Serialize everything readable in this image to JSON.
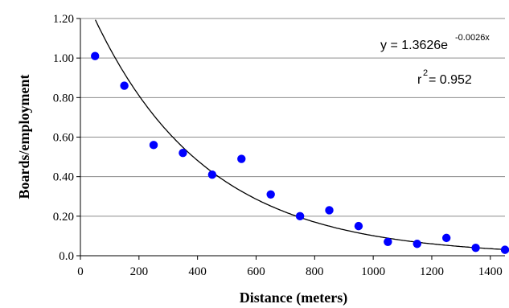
{
  "chart_data": {
    "type": "scatter",
    "xlabel": "Distance (meters)",
    "ylabel": "Boards/employment",
    "xlim": [
      0,
      1450
    ],
    "ylim": [
      0,
      1.2
    ],
    "x_ticks": [
      0,
      200,
      400,
      600,
      800,
      1000,
      1200,
      1400
    ],
    "x_tick_labels": [
      "0",
      "200",
      "400",
      "600",
      "800",
      "1000",
      "1200",
      "1400"
    ],
    "y_ticks": [
      0,
      0.2,
      0.4,
      0.6,
      0.8,
      1.0,
      1.2
    ],
    "y_tick_labels": [
      "0.0",
      "0.20",
      "0.40",
      "0.60",
      "0.80",
      "1.00",
      "1.20"
    ],
    "grid": "horizontal",
    "marker_color": "#0000ff",
    "points": [
      {
        "x": 50,
        "y": 1.01
      },
      {
        "x": 150,
        "y": 0.86
      },
      {
        "x": 250,
        "y": 0.56
      },
      {
        "x": 350,
        "y": 0.52
      },
      {
        "x": 450,
        "y": 0.41
      },
      {
        "x": 550,
        "y": 0.49
      },
      {
        "x": 650,
        "y": 0.31
      },
      {
        "x": 750,
        "y": 0.2
      },
      {
        "x": 850,
        "y": 0.23
      },
      {
        "x": 950,
        "y": 0.15
      },
      {
        "x": 1050,
        "y": 0.07
      },
      {
        "x": 1150,
        "y": 0.06
      },
      {
        "x": 1250,
        "y": 0.09
      },
      {
        "x": 1350,
        "y": 0.04
      },
      {
        "x": 1450,
        "y": 0.03
      }
    ],
    "trendline": {
      "type": "exponential",
      "a": 1.3626,
      "b": -0.0026
    },
    "annotations": {
      "equation_main": "y = 1.3626e",
      "equation_exponent": "-0.0026x",
      "r2_prefix": "r",
      "r2_sup": "2",
      "r2_suffix": " = 0.952"
    }
  }
}
